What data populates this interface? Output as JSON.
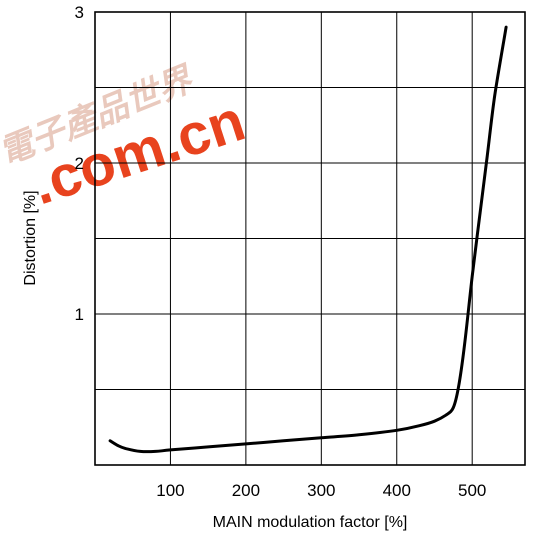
{
  "chart_data": {
    "type": "line",
    "title": "",
    "xlabel": "MAIN modulation factor [%]",
    "ylabel": "Distortion [%]",
    "xlim": [
      0,
      570
    ],
    "ylim": [
      0,
      3
    ],
    "x_ticks": [
      100,
      200,
      300,
      400,
      500
    ],
    "y_ticks": [
      1,
      2,
      3
    ],
    "grid": true,
    "x_grid_step": 100,
    "y_grid_step": 0.5,
    "series": [
      {
        "x": [
          20,
          30,
          40,
          60,
          80,
          100,
          150,
          200,
          250,
          300,
          350,
          400,
          430,
          450,
          465,
          475,
          482,
          490,
          500,
          510,
          520,
          530,
          545
        ],
        "y": [
          0.16,
          0.13,
          0.11,
          0.09,
          0.09,
          0.1,
          0.12,
          0.14,
          0.16,
          0.18,
          0.2,
          0.23,
          0.26,
          0.29,
          0.33,
          0.38,
          0.52,
          0.8,
          1.25,
          1.65,
          2.05,
          2.45,
          2.9
        ]
      }
    ]
  },
  "watermark": {
    "text": ".com.cn",
    "cjk": "電子產品世界",
    "color": "#e8431e",
    "cjk_color": "#e9c9bd"
  }
}
